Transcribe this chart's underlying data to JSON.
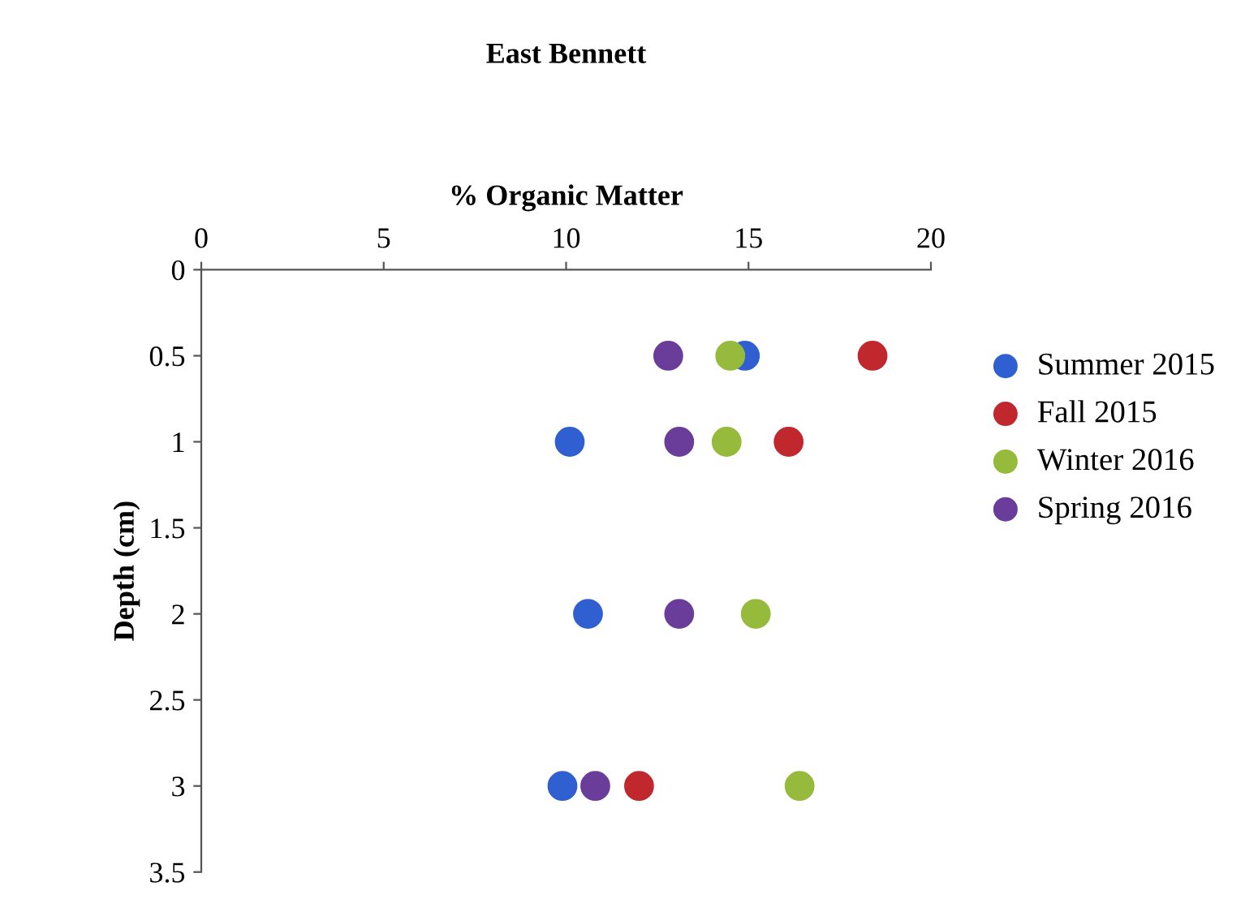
{
  "chart_data": {
    "type": "scatter",
    "title": "East Bennett",
    "xlabel": "% Organic Matter",
    "ylabel": "Depth (cm)",
    "xlim": [
      0,
      20
    ],
    "xticks": [
      0,
      5,
      10,
      15,
      20
    ],
    "ylim": [
      3.5,
      0
    ],
    "yticks": [
      0,
      0.5,
      1,
      1.5,
      2,
      2.5,
      3,
      3.5
    ],
    "grid": false,
    "legend": "right",
    "marker": "circle",
    "series": [
      {
        "name": "Summer 2015",
        "color": "#2f5fd0",
        "x": [
          14.9,
          10.1,
          10.6,
          9.9
        ],
        "values": [
          0.5,
          1,
          2,
          3
        ]
      },
      {
        "name": "Fall 2015",
        "color": "#c0282e",
        "x": [
          18.4,
          16.1,
          12.0
        ],
        "values": [
          0.5,
          1,
          3
        ]
      },
      {
        "name": "Winter 2016",
        "color": "#96bb3c",
        "x": [
          14.5,
          14.4,
          15.2,
          16.4
        ],
        "values": [
          0.5,
          1,
          2,
          3
        ]
      },
      {
        "name": "Spring 2016",
        "color": "#6a3d9a",
        "x": [
          12.8,
          13.1,
          13.1,
          10.8
        ],
        "values": [
          0.5,
          1,
          2,
          3
        ]
      }
    ]
  }
}
